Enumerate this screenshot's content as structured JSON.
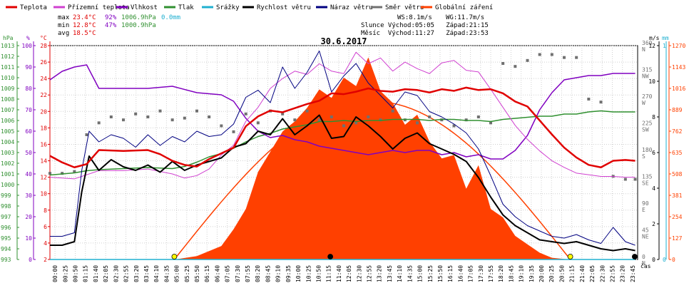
{
  "legend": [
    {
      "label": "Teplota",
      "color": "#e00000"
    },
    {
      "label": "Přízemní teplota",
      "color": "#d040d0"
    },
    {
      "label": "Vlhkost",
      "color": "#8000c0"
    },
    {
      "label": "Tlak",
      "color": "#309030"
    },
    {
      "label": "Srážky",
      "color": "#20b0d0"
    },
    {
      "label": "Rychlost větru",
      "color": "#000000"
    },
    {
      "label": "Náraz větru",
      "color": "#000080"
    },
    {
      "label": "Směr větru",
      "color": "#707070"
    },
    {
      "label": "Globální záření",
      "color": "#ff4000"
    }
  ],
  "stats": {
    "max_label": "max",
    "max_temp": "23.4°C",
    "max_hum": "92%",
    "max_press": "1006.9hPa",
    "max_rain": "0.0mm",
    "min_label": "min",
    "min_temp": "12.8°C",
    "min_hum": "47%",
    "min_press": "1000.9hPa",
    "avg_label": "avg",
    "avg_temp": "18.5°C",
    "ws": "WS:8.1m/s",
    "wg": "WG:11.7m/s",
    "sun": "Slunce Východ:05:05   Západ:21:15",
    "moon": "Měsíc  Východ:11:27   Západ:23:53"
  },
  "chart_data": {
    "type": "line",
    "title": "30.6.2017",
    "xlabel": "čas",
    "x_ticks": [
      "00:00",
      "00:25",
      "00:50",
      "01:15",
      "01:40",
      "02:05",
      "02:30",
      "02:55",
      "03:20",
      "03:45",
      "04:10",
      "04:35",
      "05:00",
      "05:25",
      "05:50",
      "06:15",
      "06:40",
      "07:05",
      "07:30",
      "07:55",
      "08:20",
      "08:45",
      "09:10",
      "09:35",
      "10:00",
      "10:25",
      "10:50",
      "11:15",
      "11:40",
      "12:05",
      "12:30",
      "12:55",
      "13:20",
      "13:45",
      "14:10",
      "14:35",
      "15:00",
      "15:25",
      "15:50",
      "16:15",
      "16:40",
      "17:05",
      "17:30",
      "17:55",
      "18:20",
      "18:45",
      "19:10",
      "19:35",
      "20:00",
      "20:25",
      "20:50",
      "21:15",
      "21:40",
      "22:05",
      "22:30",
      "22:55",
      "23:20",
      "23:45"
    ],
    "axes": {
      "pressure": {
        "label": "hPa",
        "min": 993,
        "max": 1013,
        "ticks": [
          993,
          994,
          995,
          996,
          997,
          998,
          999,
          1000,
          1001,
          1002,
          1003,
          1004,
          1005,
          1006,
          1007,
          1008,
          1009,
          1010,
          1011,
          1012,
          1013
        ]
      },
      "humidity": {
        "label": "%",
        "min": 0,
        "max": 100,
        "ticks": [
          0,
          10,
          20,
          30,
          40,
          50,
          60,
          70,
          80,
          90,
          100
        ]
      },
      "temperature": {
        "label": "°C",
        "min": 2,
        "max": 28,
        "ticks": [
          2,
          4,
          6,
          8,
          10,
          12,
          14,
          16,
          18,
          20,
          22,
          24,
          26,
          28
        ]
      },
      "direction": {
        "ticks": [
          "0 N",
          "45 NE",
          "90 E",
          "135 SE",
          "180 S",
          "225 SW",
          "270 W",
          "315 NW",
          "360 N"
        ]
      },
      "wind": {
        "label": "m/s",
        "min": 0,
        "max": 12,
        "ticks": [
          0,
          2,
          4,
          6,
          8,
          10,
          12
        ]
      },
      "rain": {
        "label": "mm",
        "min": 0,
        "max": 1,
        "ticks": [
          0,
          1
        ]
      },
      "radiation": {
        "min": 0,
        "max": 1270,
        "ticks": [
          0,
          127,
          254,
          381,
          508,
          635,
          762,
          889,
          1016,
          1143,
          1270
        ]
      }
    },
    "series": [
      {
        "name": "Teplota",
        "axis": "temperature",
        "color": "#e00000",
        "x": [
          0,
          0.5,
          1,
          1.5,
          2,
          3,
          4,
          4.5,
          5,
          5.5,
          6,
          6.5,
          7,
          7.5,
          8,
          8.5,
          9,
          9.5,
          10,
          10.5,
          11,
          11.5,
          12,
          12.5,
          13,
          13.5,
          14,
          14.5,
          15,
          15.5,
          16,
          16.5,
          17,
          17.5,
          18,
          18.5,
          19,
          19.5,
          20,
          20.5,
          21,
          21.5,
          22,
          22.5,
          23,
          23.5,
          23.9
        ],
        "y": [
          14.6,
          13.8,
          13.2,
          13.6,
          15.3,
          15.2,
          15.3,
          14.8,
          14.0,
          13.5,
          13.3,
          14.2,
          14.9,
          15.6,
          18.2,
          19.4,
          20.1,
          19.9,
          20.4,
          20.9,
          21.3,
          22.2,
          22.1,
          22.4,
          22.8,
          22.5,
          22.4,
          22.7,
          22.6,
          22.3,
          22.7,
          22.5,
          22.9,
          22.6,
          22.7,
          22.2,
          21.2,
          20.6,
          18.9,
          17.2,
          15.6,
          14.4,
          13.5,
          13.2,
          14.0,
          14.1,
          14.0
        ]
      },
      {
        "name": "Přízemní teplota",
        "axis": "temperature",
        "color": "#d040d0",
        "x": [
          0,
          0.5,
          1,
          1.5,
          2,
          3,
          4,
          5,
          5.5,
          6,
          6.5,
          7,
          7.5,
          8,
          8.5,
          9,
          9.5,
          10,
          10.5,
          11,
          11.5,
          12,
          12.5,
          13,
          13.5,
          14,
          14.5,
          15,
          15.5,
          16,
          16.5,
          17,
          17.5,
          18,
          18.5,
          19,
          19.5,
          20,
          20.5,
          21,
          21.5,
          22,
          22.5,
          23,
          23.5,
          23.9
        ],
        "y": [
          12.0,
          11.9,
          11.8,
          12.3,
          12.8,
          12.8,
          13.0,
          12.4,
          11.9,
          12.2,
          13.0,
          14.7,
          15.9,
          18.8,
          20.5,
          22.8,
          24.0,
          24.9,
          24.5,
          25.8,
          24.9,
          24.6,
          27.2,
          25.8,
          26.5,
          24.9,
          26.0,
          25.2,
          24.6,
          25.9,
          26.2,
          25.0,
          24.8,
          22.7,
          20.5,
          18.3,
          16.6,
          15.2,
          14.0,
          13.2,
          12.5,
          12.3,
          12.1,
          12.1,
          12.0,
          12.0
        ]
      },
      {
        "name": "Vlhkost",
        "axis": "humidity",
        "color": "#8000c0",
        "x": [
          0,
          0.5,
          1,
          1.5,
          2,
          3,
          4,
          5,
          6,
          7,
          7.5,
          8,
          8.5,
          9,
          9.5,
          10,
          10.5,
          11,
          11.5,
          12,
          12.5,
          13,
          13.5,
          14,
          14.5,
          15,
          15.5,
          16,
          16.5,
          17,
          17.5,
          18,
          18.5,
          19,
          19.5,
          20,
          20.5,
          21,
          21.5,
          22,
          22.5,
          23,
          23.5,
          23.9
        ],
        "y": [
          84,
          88,
          90,
          91,
          80,
          80,
          80,
          81,
          78,
          77,
          74,
          66,
          60,
          57,
          58,
          56,
          55,
          53,
          52,
          51,
          50,
          49,
          50,
          51,
          50,
          51,
          51,
          49,
          50,
          48,
          49,
          47,
          47,
          51,
          58,
          70,
          78,
          84,
          85,
          86,
          86,
          87,
          87,
          87
        ]
      },
      {
        "name": "Tlak",
        "axis": "pressure",
        "color": "#309030",
        "x": [
          0,
          0.5,
          1,
          1.5,
          2,
          3,
          4,
          5,
          5.5,
          6,
          6.5,
          7,
          7.5,
          8,
          8.5,
          9,
          9.5,
          10,
          10.5,
          11,
          11.5,
          12,
          12.5,
          13,
          13.5,
          14,
          14.5,
          15,
          15.5,
          16,
          16.5,
          17,
          17.5,
          18,
          18.5,
          19,
          19.5,
          20,
          20.5,
          21,
          21.5,
          22,
          22.5,
          23,
          23.5,
          23.9
        ],
        "y": [
          1000.9,
          1001.0,
          1001.1,
          1001.3,
          1001.4,
          1001.5,
          1001.6,
          1001.5,
          1001.7,
          1002.1,
          1002.6,
          1002.9,
          1003.4,
          1004.0,
          1004.5,
          1004.8,
          1005.2,
          1005.4,
          1005.6,
          1005.9,
          1005.9,
          1006.0,
          1005.9,
          1006.0,
          1006.0,
          1006.1,
          1006.1,
          1006.1,
          1006.0,
          1006.1,
          1006.1,
          1006.0,
          1006.0,
          1005.9,
          1006.1,
          1006.2,
          1006.3,
          1006.4,
          1006.4,
          1006.6,
          1006.6,
          1006.8,
          1006.9,
          1006.8,
          1006.8,
          1006.8
        ]
      },
      {
        "name": "Rychlost větru",
        "axis": "wind",
        "color": "#000000",
        "x": [
          0,
          0.5,
          1,
          1.3,
          1.6,
          2,
          2.5,
          3,
          3.5,
          4,
          4.5,
          5,
          5.5,
          6,
          6.5,
          7,
          7.5,
          8,
          8.5,
          9,
          9.5,
          10,
          10.5,
          11,
          11.5,
          12,
          12.5,
          13,
          13.5,
          14,
          14.5,
          15,
          15.5,
          16,
          16.5,
          17,
          17.5,
          18,
          18.5,
          19,
          19.5,
          20,
          20.5,
          21,
          21.5,
          22,
          22.5,
          23,
          23.5,
          23.9
        ],
        "y": [
          0.8,
          0.8,
          1.0,
          3.8,
          5.8,
          5.0,
          5.6,
          5.2,
          5.0,
          5.3,
          4.9,
          5.5,
          5.0,
          5.3,
          5.5,
          5.7,
          6.3,
          6.5,
          7.2,
          7.0,
          7.9,
          7.0,
          7.5,
          8.1,
          6.8,
          6.9,
          8.0,
          7.5,
          6.9,
          6.2,
          6.8,
          7.1,
          6.5,
          6.2,
          5.9,
          5.5,
          4.6,
          3.5,
          2.5,
          1.9,
          1.5,
          1.1,
          1.0,
          0.9,
          1.0,
          0.8,
          0.6,
          0.5,
          0.6,
          0.5
        ]
      },
      {
        "name": "Náraz větru",
        "axis": "wind",
        "color": "#000080",
        "x": [
          0,
          0.5,
          1,
          1.3,
          1.6,
          2,
          2.5,
          3,
          3.5,
          4,
          4.5,
          5,
          5.5,
          6,
          6.5,
          7,
          7.5,
          8,
          8.5,
          9,
          9.5,
          10,
          10.5,
          11,
          11.5,
          12,
          12.5,
          13,
          13.5,
          14,
          14.5,
          15,
          15.5,
          16,
          16.5,
          17,
          17.5,
          18,
          18.5,
          19,
          19.5,
          20,
          20.5,
          21,
          21.5,
          22,
          22.5,
          23,
          23.5,
          23.9
        ],
        "y": [
          1.3,
          1.3,
          1.5,
          5.0,
          7.2,
          6.6,
          7.0,
          6.8,
          6.3,
          7.0,
          6.4,
          6.9,
          6.6,
          7.2,
          6.9,
          7.0,
          7.6,
          9.1,
          9.5,
          8.8,
          10.8,
          9.6,
          10.5,
          11.7,
          9.4,
          10.3,
          11.0,
          9.9,
          9.2,
          8.5,
          9.4,
          9.2,
          8.3,
          8.0,
          7.6,
          7.1,
          6.2,
          4.7,
          3.1,
          2.4,
          1.9,
          1.6,
          1.3,
          1.2,
          1.4,
          1.1,
          0.9,
          1.8,
          1.0,
          0.8
        ]
      },
      {
        "name": "Směr větru",
        "axis": "direction",
        "color": "#707070",
        "x": [
          0,
          0.5,
          1,
          1.5,
          2,
          2.5,
          3,
          3.5,
          4,
          4.5,
          5,
          5.5,
          6,
          6.5,
          7,
          7.5,
          8,
          8.5,
          9,
          9.5,
          10,
          10.5,
          11,
          11.5,
          12,
          12.5,
          13,
          13.5,
          14,
          14.5,
          15,
          15.5,
          16,
          16.5,
          17,
          17.5,
          18,
          18.5,
          19,
          19.5,
          20,
          20.5,
          21,
          21.5,
          22,
          22.5,
          23,
          23.5,
          23.9
        ],
        "y": [
          145,
          145,
          148,
          210,
          230,
          240,
          235,
          245,
          240,
          250,
          235,
          238,
          250,
          240,
          225,
          215,
          245,
          230,
          250,
          245,
          235,
          250,
          235,
          240,
          225,
          230,
          240,
          235,
          250,
          235,
          230,
          240,
          235,
          225,
          235,
          240,
          230,
          330,
          325,
          335,
          345,
          345,
          340,
          340,
          270,
          265,
          140,
          135,
          135
        ]
      },
      {
        "name": "Globální záření",
        "axis": "radiation",
        "color": "#ff4000",
        "x": [
          5.1,
          6,
          7,
          7.5,
          8,
          8.5,
          9,
          9.5,
          10,
          10.5,
          11,
          11.5,
          12,
          12.5,
          13,
          13.5,
          14,
          14.5,
          15,
          15.5,
          16,
          16.5,
          17,
          17.5,
          18,
          18.5,
          19,
          19.5,
          20,
          20.5,
          21.2
        ],
        "y": [
          0,
          20,
          80,
          180,
          300,
          520,
          640,
          760,
          820,
          900,
          1010,
          960,
          1080,
          1030,
          1200,
          1000,
          930,
          800,
          860,
          700,
          600,
          620,
          420,
          560,
          300,
          250,
          140,
          90,
          40,
          10,
          0
        ]
      },
      {
        "name": "Srážky",
        "axis": "rain",
        "color": "#20b0d0",
        "x": [
          0,
          23.9
        ],
        "y": [
          0,
          0
        ]
      }
    ],
    "theoretical_radiation": {
      "axis": "radiation",
      "color": "#ff4000",
      "sunrise": 5.08,
      "sunset": 21.25,
      "peak": 940
    },
    "markers": [
      {
        "name": "sunrise",
        "x": 5.08,
        "color": "#ffff00"
      },
      {
        "name": "sunset",
        "x": 21.25,
        "color": "#ffff00"
      },
      {
        "name": "moonrise",
        "x": 11.45,
        "color": "#000000"
      },
      {
        "name": "moonset",
        "x": 23.88,
        "color": "#000000"
      }
    ]
  }
}
